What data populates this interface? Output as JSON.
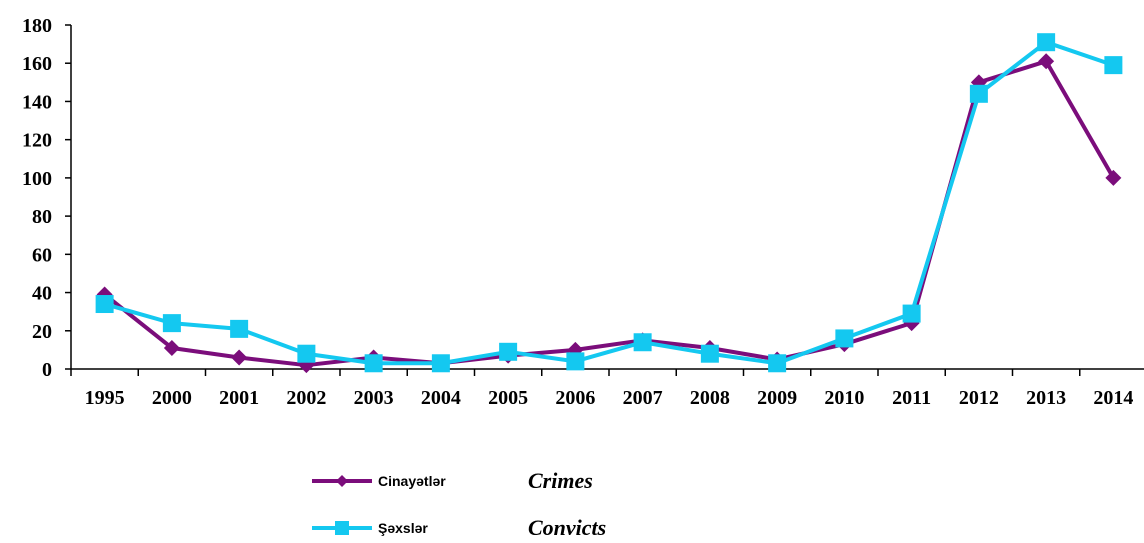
{
  "chart_data": {
    "type": "line",
    "title": "",
    "xlabel": "",
    "ylabel": "",
    "categories": [
      "1995",
      "2000",
      "2001",
      "2002",
      "2003",
      "2004",
      "2005",
      "2006",
      "2007",
      "2008",
      "2009",
      "2010",
      "2011",
      "2012",
      "2013",
      "2014"
    ],
    "ylim": [
      0,
      180
    ],
    "yticks": [
      0,
      20,
      40,
      60,
      80,
      100,
      120,
      140,
      160,
      180
    ],
    "grid": false,
    "legend_position": "bottom",
    "series": [
      {
        "name": "Cinayətlər",
        "translation": "Crimes",
        "color": "#7B0D7B",
        "marker": "diamond",
        "values": [
          39,
          11,
          6,
          2,
          6,
          3,
          7,
          10,
          15,
          11,
          5,
          13,
          24,
          150,
          161,
          100
        ]
      },
      {
        "name": "Şəxslər",
        "translation": "Convicts",
        "color": "#14C8F0",
        "marker": "square",
        "values": [
          34,
          24,
          21,
          8,
          3,
          3,
          9,
          4,
          14,
          8,
          3,
          16,
          29,
          144,
          171,
          159
        ]
      }
    ]
  }
}
